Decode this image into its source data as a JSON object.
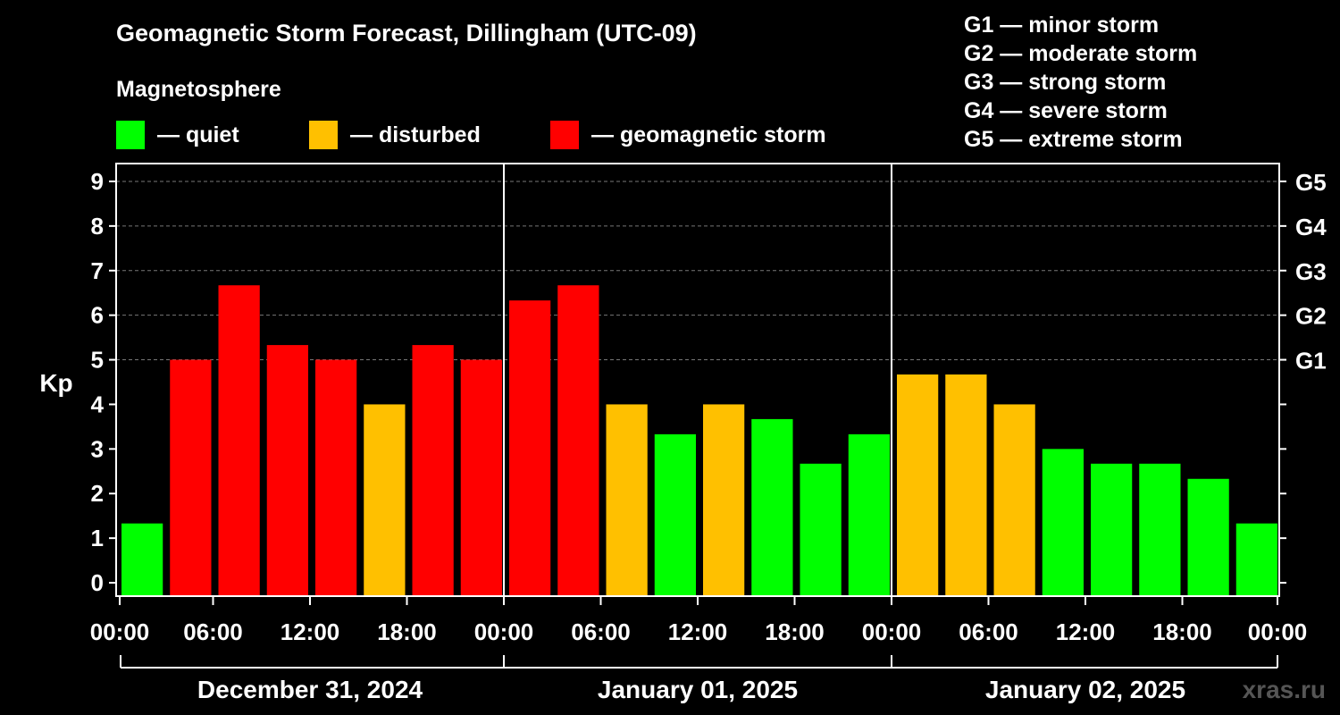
{
  "header": {
    "title": "Geomagnetic Storm Forecast, Dillingham (UTC-09)",
    "magnetosphere_label": "Magnetosphere",
    "legend": [
      {
        "label": "— quiet",
        "color": "#00ff00"
      },
      {
        "label": "— disturbed",
        "color": "#ffc000"
      },
      {
        "label": "— geomagnetic storm",
        "color": "#ff0000"
      }
    ]
  },
  "g_scale": [
    "G1 — minor storm",
    "G2 — moderate storm",
    "G3 — strong storm",
    "G4 — severe storm",
    "G5 — extreme storm"
  ],
  "watermark": "xras.ru",
  "chart_data": {
    "type": "bar",
    "title": "Geomagnetic Storm Forecast, Dillingham (UTC-09)",
    "ylabel": "Kp",
    "ylim": [
      -0.3,
      9.4
    ],
    "y_ticks": [
      0,
      1,
      2,
      3,
      4,
      5,
      6,
      7,
      8,
      9
    ],
    "grid": "dashed horizontal at Kp 5-9",
    "right_axis": [
      {
        "value": 5,
        "label": "G1"
      },
      {
        "value": 6,
        "label": "G2"
      },
      {
        "value": 7,
        "label": "G3"
      },
      {
        "value": 8,
        "label": "G4"
      },
      {
        "value": 9,
        "label": "G5"
      }
    ],
    "x_tick_labels": [
      "00:00",
      "06:00",
      "12:00",
      "18:00",
      "00:00",
      "06:00",
      "12:00",
      "18:00",
      "00:00",
      "06:00",
      "12:00",
      "18:00",
      "00:00"
    ],
    "days": [
      "December 31, 2024",
      "January 01, 2025",
      "January 02, 2025"
    ],
    "interval_hours": 3,
    "colors": {
      "quiet": "#00ff00",
      "disturbed": "#ffc000",
      "storm": "#ff0000"
    },
    "values": [
      1.33,
      5.0,
      6.67,
      5.33,
      5.0,
      4.0,
      5.33,
      5.0,
      6.33,
      6.67,
      4.0,
      3.33,
      4.0,
      3.67,
      2.67,
      3.33,
      4.67,
      4.67,
      4.0,
      3.0,
      2.67,
      2.67,
      2.33,
      1.33
    ],
    "levels": [
      "quiet",
      "storm",
      "storm",
      "storm",
      "storm",
      "disturbed",
      "storm",
      "storm",
      "storm",
      "storm",
      "disturbed",
      "quiet",
      "disturbed",
      "quiet",
      "quiet",
      "quiet",
      "disturbed",
      "disturbed",
      "disturbed",
      "quiet",
      "quiet",
      "quiet",
      "quiet",
      "quiet"
    ]
  }
}
